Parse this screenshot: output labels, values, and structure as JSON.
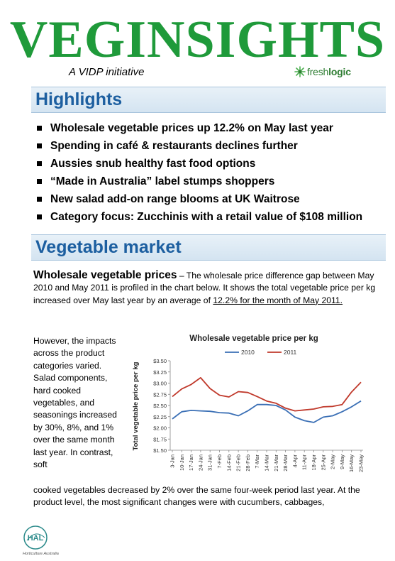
{
  "masthead": {
    "title": "VEGINSIGHTS",
    "subtitle": "A VIDP initiative",
    "logo": {
      "icon": "freshlogic-star-icon",
      "text_light": "fresh",
      "text_bold": "logic",
      "color": "#2e7d32"
    },
    "title_color": "#1f9a3a"
  },
  "highlights": {
    "heading": "Highlights",
    "items": [
      "Wholesale vegetable prices up 12.2% on May last year",
      "Spending in café & restaurants declines further",
      "Aussies snub healthy fast food options",
      "“Made in Australia” label stumps shoppers",
      "New salad add-on range blooms at UK Waitrose",
      "Category focus: Zucchinis with a retail value of $108 million"
    ]
  },
  "market": {
    "heading": "Vegetable market",
    "lead": "Wholesale vegetable prices",
    "intro_part1": " – The wholesale price difference gap between May 2010 and May 2011 is profiled in the chart below. It shows the total vegetable price per kg increased over May last year by an average of ",
    "intro_underlined": "12.2% for the month of May 2011.",
    "side_text": "However, the impacts across the product categories varied. Salad components, hard cooked vegetables, and seasonings increased by 30%, 8%, and 1% over the same month last year. In contrast, soft",
    "continued_text": "cooked vegetables decreased by 2% over the same four-week period last year. At the product level, the most significant changes were with cucumbers, cabbages,"
  },
  "footer": {
    "logo_text": "HAL",
    "logo_caption": "Horticulture Australia",
    "logo_color": "#2a8a8a"
  },
  "chart_data": {
    "type": "line",
    "title": "Wholesale vegetable price per kg",
    "ylabel": "Total vegetable price per kg",
    "xlabel": "",
    "ylim": [
      1.5,
      3.5
    ],
    "yticks": [
      "$1.50",
      "$1.75",
      "$2.00",
      "$2.25",
      "$2.50",
      "$2.75",
      "$3.00",
      "$3.25",
      "$3.50"
    ],
    "legend_position": "top-center",
    "grid": false,
    "categories": [
      "3-Jan",
      "10-Jan",
      "17-Jan",
      "24-Jan",
      "31-Jan",
      "7-Feb",
      "14-Feb",
      "21-Feb",
      "28-Feb",
      "7-Mar",
      "14-Mar",
      "21-Mar",
      "28-Mar",
      "4-Apr",
      "11-Apr",
      "18-Apr",
      "25-Apr",
      "2-May",
      "9-May",
      "16-May",
      "23-May"
    ],
    "series": [
      {
        "name": "2010",
        "color": "#3a6fb5",
        "values": [
          2.2,
          2.36,
          2.39,
          2.38,
          2.37,
          2.34,
          2.33,
          2.27,
          2.38,
          2.52,
          2.52,
          2.5,
          2.4,
          2.24,
          2.16,
          2.12,
          2.24,
          2.27,
          2.36,
          2.47,
          2.6
        ]
      },
      {
        "name": "2011",
        "color": "#c0392b",
        "values": [
          2.7,
          2.87,
          2.97,
          3.12,
          2.88,
          2.73,
          2.69,
          2.81,
          2.79,
          2.7,
          2.6,
          2.55,
          2.44,
          2.38,
          2.4,
          2.42,
          2.47,
          2.48,
          2.52,
          2.8,
          3.02
        ]
      }
    ]
  }
}
